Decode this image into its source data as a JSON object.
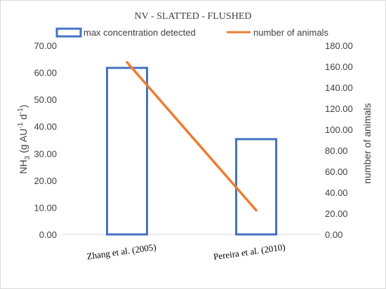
{
  "chart_data": {
    "type": "bar+line",
    "title": "NV -  SLATTED - FLUSHED",
    "categories": [
      "Zhang et al. (2005)",
      "Pereira et al. (2010)"
    ],
    "series": [
      {
        "name": "max concentration detected",
        "type": "bar",
        "axis": "left",
        "values": [
          61.7,
          35.3
        ],
        "color": "#4472c4"
      },
      {
        "name": "number of animals",
        "type": "line",
        "axis": "right",
        "values": [
          164,
          23
        ],
        "color": "#ed7d31"
      }
    ],
    "ylabel_left": {
      "base": "NH",
      "sub": "3",
      "mid": " (g AU",
      "sup1": "-1",
      "mid2": " d",
      "sup2": "-1",
      "end": ")"
    },
    "ylabel_right": "number of animals",
    "ylim_left": [
      0,
      70
    ],
    "ylim_right": [
      0,
      180
    ],
    "yticks_left": [
      "0.00",
      "10.00",
      "20.00",
      "30.00",
      "40.00",
      "50.00",
      "60.00",
      "70.00"
    ],
    "yticks_right": [
      "0.00",
      "20.00",
      "40.00",
      "60.00",
      "80.00",
      "100.00",
      "120.00",
      "140.00",
      "160.00",
      "180.00"
    ],
    "grid": false,
    "legend_position": "top"
  }
}
